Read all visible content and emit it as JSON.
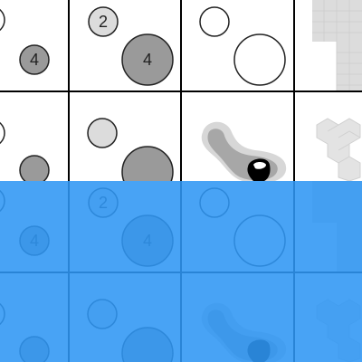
{
  "diagram": {
    "badges": {
      "two": "2",
      "four": "4"
    },
    "colors": {
      "grid_line": "#000000",
      "circle_stroke": "#222222",
      "light_fill": "#dcdcdc",
      "mid_fill": "#9a9a9a",
      "tile_light": "#e3e3e3",
      "tile_mid": "#cfcfcf",
      "blob_outer": "#d7d7d7",
      "blob_mid": "#a7a7a7",
      "blob_core": "#000000",
      "selection": "#2f96f4"
    },
    "selection": {
      "opacity": 0.88
    }
  }
}
